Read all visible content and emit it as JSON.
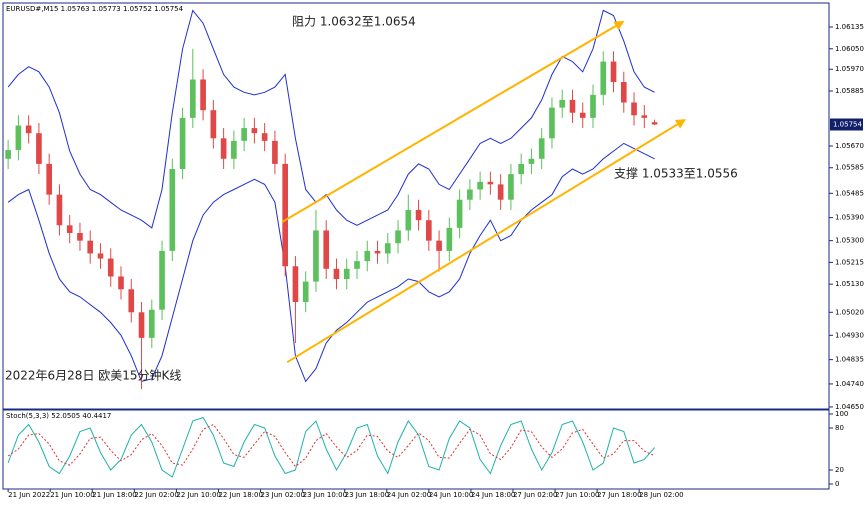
{
  "chart_data": [
    {
      "type": "candlestick",
      "header": "EURUSD#,M15 1.05763 1.05773 1.05752 1.05754",
      "annotations": [
        "阻力 1.0632至1.0654",
        "支撑 1.0533至1.0556",
        "2022年6月28日 欧美15分钟K线"
      ],
      "last_price": 1.05754,
      "up_color": "#5cc05c",
      "down_color": "#e04848",
      "band_color": "#1f2fd0",
      "trend_color": "#ffb400",
      "open": [
        1.0562,
        1.05654,
        1.0575,
        1.0572,
        1.056,
        1.0548,
        1.0536,
        1.0533,
        1.053,
        1.0525,
        1.0523,
        1.0516,
        1.0511,
        1.0502,
        1.0492,
        1.0503,
        1.0526,
        1.0558,
        1.0578,
        1.0593,
        1.0581,
        1.057,
        1.0562,
        1.0569,
        1.0574,
        1.0572,
        1.0569,
        1.056,
        1.052,
        1.0506,
        1.0514,
        1.0534,
        1.0519,
        1.0515,
        1.0519,
        1.0522,
        1.0526,
        1.0525,
        1.0529,
        1.0534,
        1.0542,
        1.0538,
        1.053,
        1.0526,
        1.0535,
        1.0546,
        1.055,
        1.0553,
        1.0552,
        1.0546,
        1.0556,
        1.056,
        1.0562,
        1.057,
        1.0582,
        1.0585,
        1.058,
        1.0578,
        1.0587,
        1.06,
        1.0592,
        1.0584,
        1.0579,
        1.05763
      ],
      "high": [
        1.05694,
        1.0579,
        1.0579,
        1.0576,
        1.0564,
        1.0552,
        1.054,
        1.0537,
        1.0534,
        1.0529,
        1.0527,
        1.052,
        1.0515,
        1.0506,
        1.0507,
        1.053,
        1.0562,
        1.0582,
        1.0605,
        1.0597,
        1.0585,
        1.0574,
        1.0573,
        1.0578,
        1.0578,
        1.0576,
        1.0573,
        1.0564,
        1.0524,
        1.0518,
        1.0542,
        1.0538,
        1.0523,
        1.0523,
        1.0526,
        1.053,
        1.053,
        1.0533,
        1.0538,
        1.0548,
        1.0546,
        1.0542,
        1.0534,
        1.0539,
        1.055,
        1.0554,
        1.0557,
        1.0557,
        1.0556,
        1.056,
        1.0564,
        1.0566,
        1.0574,
        1.0586,
        1.0589,
        1.0589,
        1.0584,
        1.0591,
        1.0604,
        1.0604,
        1.0596,
        1.0588,
        1.0583,
        1.05773
      ],
      "low": [
        1.0558,
        1.05614,
        1.0568,
        1.0556,
        1.0544,
        1.0532,
        1.0529,
        1.0526,
        1.0521,
        1.0519,
        1.0512,
        1.0507,
        1.0498,
        1.0472,
        1.0488,
        1.0499,
        1.0522,
        1.0554,
        1.0574,
        1.0577,
        1.0566,
        1.0558,
        1.0558,
        1.0565,
        1.0568,
        1.0565,
        1.0556,
        1.0516,
        1.049,
        1.0502,
        1.051,
        1.0515,
        1.0511,
        1.0511,
        1.0515,
        1.0518,
        1.0521,
        1.0521,
        1.0525,
        1.053,
        1.0534,
        1.0526,
        1.0518,
        1.0522,
        1.0531,
        1.0542,
        1.0546,
        1.0548,
        1.0542,
        1.0542,
        1.0552,
        1.0556,
        1.0558,
        1.0566,
        1.0578,
        1.0576,
        1.0574,
        1.0574,
        1.0583,
        1.0588,
        1.058,
        1.0575,
        1.0574,
        1.05752
      ],
      "close": [
        1.05654,
        1.0575,
        1.0572,
        1.056,
        1.0548,
        1.0536,
        1.0533,
        1.053,
        1.0525,
        1.0523,
        1.0516,
        1.0511,
        1.0502,
        1.0492,
        1.0503,
        1.0526,
        1.0558,
        1.0578,
        1.0593,
        1.0581,
        1.057,
        1.0562,
        1.0569,
        1.0574,
        1.0572,
        1.0569,
        1.056,
        1.052,
        1.0506,
        1.0514,
        1.0534,
        1.0519,
        1.0515,
        1.0519,
        1.0522,
        1.0526,
        1.0525,
        1.0529,
        1.0534,
        1.0542,
        1.0538,
        1.053,
        1.0526,
        1.0535,
        1.0546,
        1.055,
        1.0553,
        1.0552,
        1.0546,
        1.0556,
        1.056,
        1.0562,
        1.057,
        1.0582,
        1.0585,
        1.058,
        1.0578,
        1.0587,
        1.06,
        1.0592,
        1.0584,
        1.0579,
        1.0578,
        1.05754
      ],
      "bands": [
        {
          "values": [
            1.059,
            1.0595,
            1.0598,
            1.0596,
            1.059,
            1.058,
            1.0565,
            1.0556,
            1.055,
            1.0548,
            1.0545,
            1.0542,
            1.054,
            1.0538,
            1.0535,
            1.055,
            1.058,
            1.0605,
            1.062,
            1.0615,
            1.0605,
            1.0595,
            1.059,
            1.0588,
            1.0587,
            1.0588,
            1.059,
            1.0595,
            1.057,
            1.055,
            1.0545,
            1.0548,
            1.0542,
            1.0538,
            1.0536,
            1.0538,
            1.054,
            1.0542,
            1.0548,
            1.0556,
            1.056,
            1.0558,
            1.0552,
            1.055,
            1.0556,
            1.0562,
            1.0568,
            1.057,
            1.0568,
            1.057,
            1.0574,
            1.0578,
            1.0585,
            1.0595,
            1.0602,
            1.06,
            1.0596,
            1.0605,
            1.062,
            1.0618,
            1.0608,
            1.0596,
            1.059,
            1.0588
          ]
        },
        {
          "values": [
            1.0545,
            1.0548,
            1.055,
            1.0538,
            1.0525,
            1.0515,
            1.051,
            1.0508,
            1.0505,
            1.0502,
            1.0498,
            1.0493,
            1.0485,
            1.0475,
            1.0476,
            1.0485,
            1.05,
            1.0515,
            1.053,
            1.054,
            1.0545,
            1.0548,
            1.055,
            1.0552,
            1.0554,
            1.0552,
            1.0545,
            1.052,
            1.0485,
            1.0475,
            1.048,
            1.049,
            1.0495,
            1.0498,
            1.0502,
            1.0506,
            1.0508,
            1.051,
            1.0512,
            1.0515,
            1.0514,
            1.051,
            1.0508,
            1.051,
            1.0515,
            1.0525,
            1.0532,
            1.0538,
            1.053,
            1.0532,
            1.0538,
            1.0542,
            1.0545,
            1.0548,
            1.0555,
            1.0558,
            1.0556,
            1.0558,
            1.0562,
            1.0565,
            1.0568,
            1.0566,
            1.0564,
            1.0562
          ]
        }
      ],
      "trend_lines": [
        {
          "x": [
            26.7,
            59.9
          ],
          "y": [
            1.05373,
            1.06155
          ]
        },
        {
          "x": [
            27.2,
            65.9
          ],
          "y": [
            1.04825,
            1.05771
          ]
        }
      ],
      "xlim": [
        -0.5,
        80
      ],
      "ylim": [
        1.04642,
        1.06225
      ],
      "yticks": [
        1.06135,
        {
          "value": 1.0605,
          "label": "1.06050"
        },
        {
          "value": 1.0597,
          "label": "1.05970"
        },
        1.05885,
        {
          "value": 1.0567,
          "label": "1.05670"
        },
        1.05585,
        1.05485,
        {
          "value": 1.0539,
          "label": "1.05390"
        },
        {
          "value": 1.053,
          "label": "1.05300"
        },
        1.05215,
        {
          "value": 1.0513,
          "label": "1.05130"
        },
        {
          "value": 1.0502,
          "label": "1.05020"
        },
        {
          "value": 1.0493,
          "label": "1.04930"
        },
        1.04835,
        {
          "value": 1.0474,
          "label": "1.04740"
        },
        {
          "value": 1.0465,
          "label": "1.04650"
        }
      ]
    },
    {
      "type": "line",
      "label": "Stoch(5,3,3) 52.0505 40.4417",
      "series": [
        {
          "color": "#20b2aa",
          "values": [
            30,
            70,
            85,
            60,
            25,
            15,
            40,
            75,
            80,
            45,
            20,
            35,
            70,
            85,
            60,
            20,
            10,
            50,
            90,
            95,
            70,
            30,
            25,
            60,
            85,
            80,
            40,
            15,
            20,
            75,
            90,
            50,
            20,
            45,
            80,
            85,
            40,
            15,
            60,
            90,
            70,
            25,
            20,
            65,
            90,
            80,
            35,
            15,
            55,
            85,
            90,
            50,
            20,
            45,
            85,
            90,
            60,
            20,
            30,
            80,
            75,
            30,
            35,
            52.0505
          ]
        },
        {
          "color": "#e03030",
          "dashed": true,
          "values": [
            40,
            50,
            70,
            72,
            57,
            33,
            27,
            43,
            65,
            67,
            48,
            33,
            42,
            63,
            72,
            55,
            30,
            27,
            50,
            78,
            85,
            65,
            42,
            38,
            57,
            75,
            68,
            45,
            25,
            37,
            62,
            72,
            53,
            38,
            48,
            70,
            68,
            47,
            38,
            55,
            73,
            62,
            38,
            37,
            58,
            78,
            70,
            43,
            35,
            52,
            77,
            75,
            53,
            38,
            50,
            73,
            78,
            57,
            37,
            43,
            62,
            62,
            47,
            40.4417
          ]
        }
      ],
      "xlim": [
        -0.5,
        80
      ],
      "ylim": [
        0,
        100
      ],
      "yticks": [
        100,
        80,
        20,
        0
      ],
      "xticks": [
        {
          "value": 0,
          "label": "21 Jun 2022"
        },
        {
          "value": 4.1,
          "label": "21 Jun 10:00"
        },
        {
          "value": 8.2,
          "label": "21 Jun 18:00"
        },
        {
          "value": 12.3,
          "label": "22 Jun 02:00"
        },
        {
          "value": 16.4,
          "label": "22 Jun 10:00"
        },
        {
          "value": 20.5,
          "label": "22 Jun 18:00"
        },
        {
          "value": 24.6,
          "label": "23 Jun 02:00"
        },
        {
          "value": 28.7,
          "label": "23 Jun 10:00"
        },
        {
          "value": 32.8,
          "label": "23 Jun 18:00"
        },
        {
          "value": 36.9,
          "label": "24 Jun 02:00"
        },
        {
          "value": 41,
          "label": "24 Jun 10:00"
        },
        {
          "value": 45.1,
          "label": "24 Jun 18:00"
        },
        {
          "value": 49.2,
          "label": "27 Jun 02:00"
        },
        {
          "value": 53.3,
          "label": "27 Jun 10:00"
        },
        {
          "value": 57.4,
          "label": "27 Jun 18:00"
        },
        {
          "value": 61.5,
          "label": "28 Jun 02:00"
        }
      ]
    }
  ]
}
